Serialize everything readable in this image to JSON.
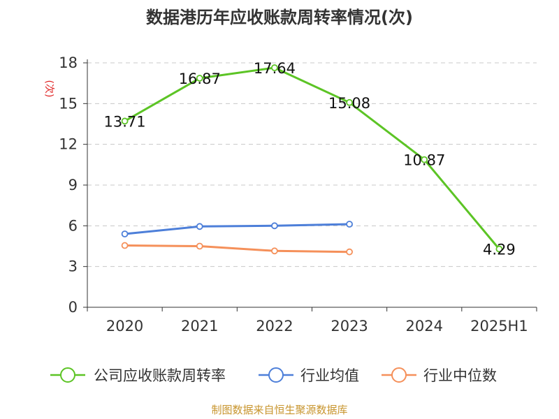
{
  "chart_data": {
    "type": "line",
    "title": "数据港历年应收账款周转率情况(次)",
    "ylabel": "(次)",
    "categories": [
      "2020",
      "2021",
      "2022",
      "2023",
      "2024",
      "2025H1"
    ],
    "ylim": [
      0,
      18
    ],
    "yticks": [
      0,
      3,
      6,
      9,
      12,
      15,
      18
    ],
    "grid": true,
    "legend_position": "bottom",
    "series": [
      {
        "name": "公司应收账款周转率",
        "color": "#5cc425",
        "values": [
          13.71,
          16.87,
          17.64,
          15.08,
          10.87,
          4.29
        ],
        "labels": [
          "13.71",
          "16.87",
          "17.64",
          "15.08",
          "10.87",
          "4.29"
        ]
      },
      {
        "name": "行业均值",
        "color": "#4d7fd9",
        "values": [
          5.4,
          5.95,
          6.0,
          6.12,
          null,
          null
        ],
        "labels": []
      },
      {
        "name": "行业中位数",
        "color": "#f5905a",
        "values": [
          4.55,
          4.5,
          4.15,
          4.08,
          null,
          null
        ],
        "labels": []
      }
    ]
  },
  "source": "制图数据来自恒生聚源数据库"
}
